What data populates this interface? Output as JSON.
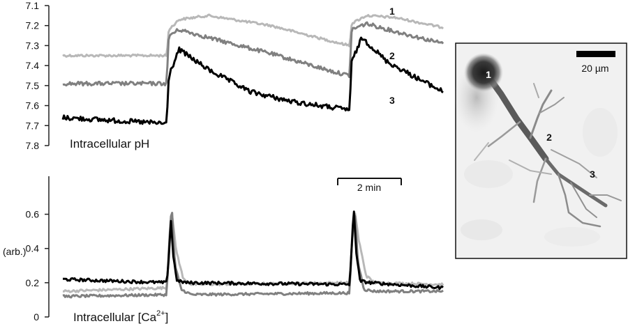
{
  "colors": {
    "trace_1": "#b8b8b8",
    "trace_2": "#808080",
    "trace_3": "#000000",
    "axis": "#222222"
  },
  "chart_data": [
    {
      "type": "line",
      "title": "Intracellular pH",
      "ylabel": "",
      "y_inverted": true,
      "ylim": [
        7.8,
        7.1
      ],
      "y_ticks": [
        "7.1",
        "7.2",
        "7.3",
        "7.4",
        "7.5",
        "7.6",
        "7.7",
        "7.8"
      ],
      "x_unit": "min",
      "xlim": [
        0,
        9.15
      ],
      "grid": false,
      "series": [
        {
          "name": "1",
          "color_key": "trace_1",
          "x": [
            0,
            2.5,
            2.55,
            2.8,
            3.5,
            5.0,
            6.5,
            6.9,
            6.95,
            7.3,
            8.0,
            9.15
          ],
          "y": [
            7.35,
            7.35,
            7.22,
            7.17,
            7.15,
            7.2,
            7.28,
            7.3,
            7.19,
            7.15,
            7.16,
            7.21
          ]
        },
        {
          "name": "2",
          "color_key": "trace_2",
          "x": [
            0,
            2.5,
            2.55,
            2.8,
            3.5,
            5.0,
            6.5,
            6.9,
            6.95,
            7.3,
            8.0,
            9.15
          ],
          "y": [
            7.49,
            7.49,
            7.25,
            7.22,
            7.26,
            7.34,
            7.43,
            7.45,
            7.22,
            7.19,
            7.23,
            7.29
          ]
        },
        {
          "name": "3",
          "color_key": "trace_3",
          "x": [
            0,
            2.5,
            2.55,
            2.8,
            3.5,
            4.5,
            5.5,
            6.5,
            6.9,
            6.95,
            7.2,
            7.8,
            8.5,
            9.15
          ],
          "y": [
            7.66,
            7.69,
            7.45,
            7.32,
            7.42,
            7.53,
            7.58,
            7.61,
            7.62,
            7.38,
            7.26,
            7.38,
            7.46,
            7.53
          ]
        }
      ]
    },
    {
      "type": "line",
      "title": "Intracellular [Ca",
      "title_superscript": "2+",
      "title_suffix": "]",
      "ylabel": "(arb.)",
      "ylim": [
        0,
        0.7
      ],
      "y_ticks": [
        "0",
        "0.2",
        "0.4",
        "0.6"
      ],
      "x_unit": "min",
      "xlim": [
        0,
        9.15
      ],
      "grid": false,
      "scale_bar": {
        "label": "2 min",
        "start_min": 6.25,
        "length_min": 2
      },
      "series": [
        {
          "name": "1",
          "color_key": "trace_1",
          "x": [
            0,
            2.5,
            2.55,
            2.62,
            2.72,
            2.9,
            3.1,
            6.9,
            6.95,
            7.02,
            7.12,
            7.3,
            7.5,
            9.15
          ],
          "y": [
            0.15,
            0.17,
            0.36,
            0.62,
            0.4,
            0.22,
            0.19,
            0.2,
            0.4,
            0.63,
            0.45,
            0.24,
            0.2,
            0.19
          ]
        },
        {
          "name": "2",
          "color_key": "trace_2",
          "x": [
            0,
            2.5,
            2.55,
            2.62,
            2.7,
            2.85,
            3.1,
            6.9,
            6.95,
            7.02,
            7.1,
            7.25,
            7.5,
            9.15
          ],
          "y": [
            0.12,
            0.13,
            0.4,
            0.65,
            0.3,
            0.16,
            0.13,
            0.14,
            0.4,
            0.65,
            0.32,
            0.16,
            0.15,
            0.15
          ]
        },
        {
          "name": "3",
          "color_key": "trace_3",
          "x": [
            0,
            2.5,
            2.55,
            2.6,
            2.66,
            2.75,
            3.0,
            6.9,
            6.95,
            7.0,
            7.06,
            7.15,
            7.4,
            9.15
          ],
          "y": [
            0.22,
            0.2,
            0.35,
            0.57,
            0.35,
            0.21,
            0.2,
            0.19,
            0.4,
            0.64,
            0.38,
            0.21,
            0.2,
            0.17
          ]
        }
      ]
    }
  ],
  "micrograph": {
    "scale_label": "20 µm",
    "labels": [
      "1",
      "2",
      "3"
    ]
  }
}
